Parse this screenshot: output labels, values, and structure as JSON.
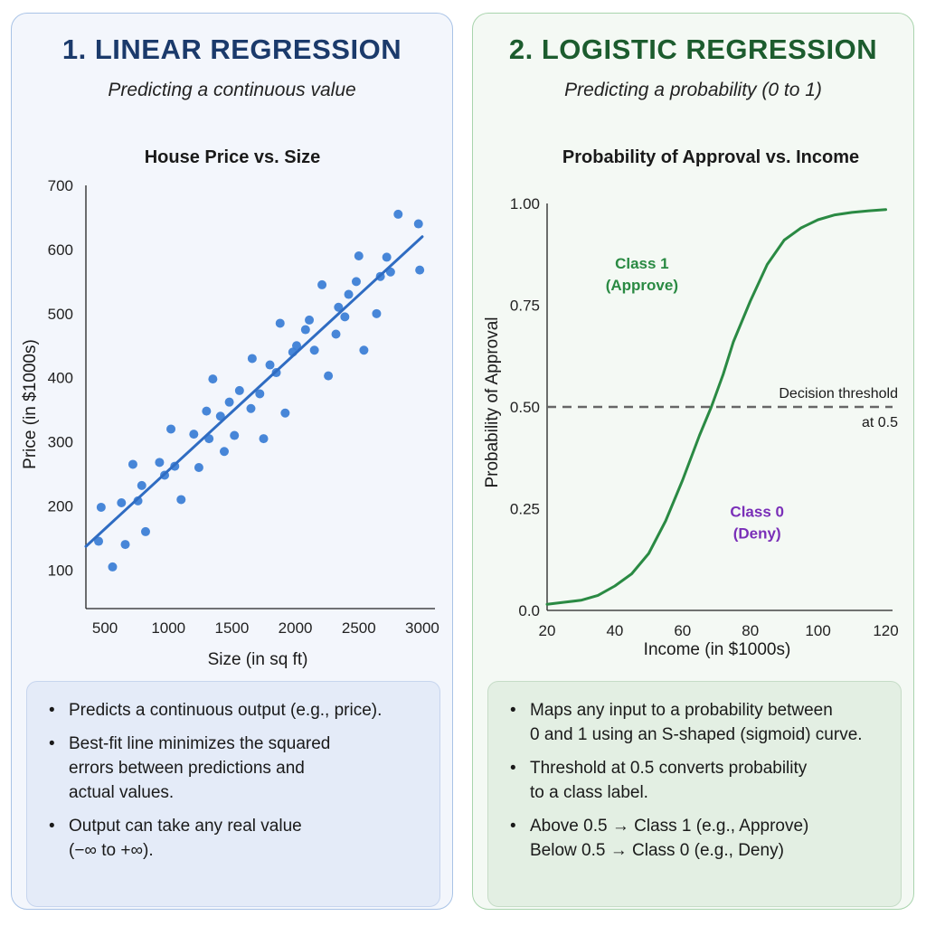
{
  "left": {
    "title": "1. LINEAR REGRESSION",
    "subtitle": "Predicting a continuous value",
    "bullets": [
      [
        "Predicts a continuous output (e.g., price)."
      ],
      [
        "Best-fit line minimizes the squared",
        "errors between predictions and",
        "actual values."
      ],
      [
        "Output can take any real value",
        "(−∞ to +∞)."
      ]
    ]
  },
  "right": {
    "title": "2. LOGISTIC REGRESSION",
    "subtitle": "Predicting a probability (0 to 1)",
    "bullets": [
      [
        "Maps any input to a probability between",
        "0 and 1 using an S-shaped (sigmoid) curve."
      ],
      [
        "Threshold at 0.5 converts probability",
        "to a class label."
      ],
      [
        "Above 0.5 → Class 1 (e.g., Approve)",
        "Below 0.5 → Class 0 (e.g., Deny)"
      ]
    ]
  },
  "colors": {
    "linear_point": "#3d7fd6",
    "linear_line": "#2f6cc2",
    "sigmoid": "#2a8a43",
    "threshold": "#666666",
    "class1": "#2a8a43",
    "class0": "#7a2fb8"
  },
  "chart_data": [
    {
      "type": "scatter",
      "title": "House Price vs. Size",
      "xlabel": "Size (in sq ft)",
      "ylabel": "Price (in $1000s)",
      "xlim": [
        350,
        3100
      ],
      "ylim": [
        40,
        700
      ],
      "x_ticks": [
        500,
        1000,
        1500,
        2000,
        2500,
        3000
      ],
      "y_ticks": [
        100,
        200,
        300,
        400,
        500,
        600,
        700
      ],
      "x_tick_labels": [
        "500",
        "1000",
        "1500",
        "2000",
        "2500",
        "3000"
      ],
      "y_tick_labels": [
        "100",
        "200",
        "300",
        "400",
        "500",
        "600",
        "700"
      ],
      "points": [
        [
          450,
          145
        ],
        [
          470,
          198
        ],
        [
          560,
          105
        ],
        [
          630,
          205
        ],
        [
          660,
          140
        ],
        [
          720,
          265
        ],
        [
          760,
          208
        ],
        [
          790,
          232
        ],
        [
          820,
          160
        ],
        [
          930,
          268
        ],
        [
          970,
          248
        ],
        [
          1020,
          320
        ],
        [
          1050,
          262
        ],
        [
          1100,
          210
        ],
        [
          1200,
          312
        ],
        [
          1240,
          260
        ],
        [
          1300,
          348
        ],
        [
          1320,
          305
        ],
        [
          1350,
          398
        ],
        [
          1410,
          340
        ],
        [
          1440,
          285
        ],
        [
          1480,
          362
        ],
        [
          1520,
          310
        ],
        [
          1560,
          380
        ],
        [
          1650,
          352
        ],
        [
          1660,
          430
        ],
        [
          1720,
          375
        ],
        [
          1750,
          305
        ],
        [
          1800,
          420
        ],
        [
          1850,
          408
        ],
        [
          1880,
          485
        ],
        [
          1920,
          345
        ],
        [
          1980,
          440
        ],
        [
          2010,
          450
        ],
        [
          2080,
          475
        ],
        [
          2110,
          490
        ],
        [
          2150,
          443
        ],
        [
          2210,
          545
        ],
        [
          2260,
          403
        ],
        [
          2320,
          468
        ],
        [
          2340,
          510
        ],
        [
          2390,
          495
        ],
        [
          2420,
          530
        ],
        [
          2480,
          550
        ],
        [
          2500,
          590
        ],
        [
          2540,
          443
        ],
        [
          2640,
          500
        ],
        [
          2670,
          558
        ],
        [
          2720,
          588
        ],
        [
          2750,
          565
        ],
        [
          2810,
          655
        ],
        [
          2970,
          640
        ],
        [
          2980,
          568
        ]
      ],
      "fit_line": {
        "x": [
          350,
          3000
        ],
        "y": [
          137,
          620
        ]
      }
    },
    {
      "type": "line",
      "title": "Probability of Approval vs. Income",
      "xlabel": "Income (in $1000s)",
      "ylabel": "Probability of Approval",
      "xlim": [
        20,
        122
      ],
      "ylim": [
        0,
        1
      ],
      "x_ticks": [
        20,
        40,
        60,
        80,
        100,
        120
      ],
      "y_ticks": [
        0,
        0.25,
        0.5,
        0.75,
        1
      ],
      "x_tick_labels": [
        "20",
        "40",
        "60",
        "80",
        "100",
        "120"
      ],
      "y_tick_labels": [
        "0.0",
        "0.25",
        "0.50",
        "0.75",
        "1.00"
      ],
      "series": [
        {
          "x": [
            20,
            25,
            30,
            35,
            40,
            45,
            50,
            55,
            60,
            65,
            68.5,
            72,
            75,
            80,
            85,
            90,
            95,
            100,
            105,
            110,
            115,
            120
          ],
          "y": [
            0.015,
            0.02,
            0.025,
            0.037,
            0.06,
            0.09,
            0.14,
            0.22,
            0.32,
            0.43,
            0.5,
            0.58,
            0.66,
            0.76,
            0.85,
            0.91,
            0.94,
            0.96,
            0.972,
            0.978,
            0.982,
            0.985
          ]
        }
      ],
      "threshold": {
        "y": 0.5,
        "label_lines": [
          "Decision threshold",
          "at 0.5"
        ]
      },
      "annotations": [
        {
          "lines": [
            "Class 1",
            "(Approve)"
          ],
          "x": 48,
          "y": 0.84,
          "color_key": "class1"
        },
        {
          "lines": [
            "Class 0",
            "(Deny)"
          ],
          "x": 82,
          "y": 0.23,
          "color_key": "class0"
        }
      ]
    }
  ]
}
